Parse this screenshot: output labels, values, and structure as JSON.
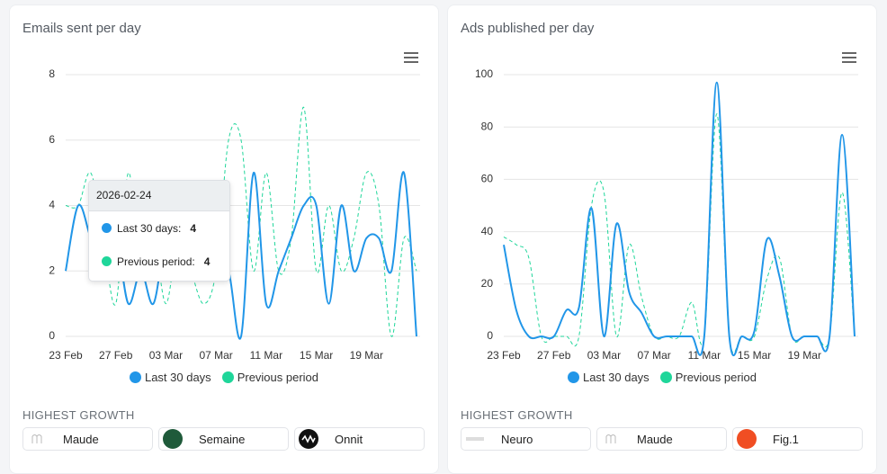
{
  "chart_data": [
    {
      "type": "line",
      "title": "Emails sent per day",
      "x": [
        "2026-02-23",
        "2026-02-24",
        "2026-02-25",
        "2026-02-26",
        "2026-02-27",
        "2026-02-28",
        "2026-03-01",
        "2026-03-02",
        "2026-03-03",
        "2026-03-04",
        "2026-03-05",
        "2026-03-06",
        "2026-03-07",
        "2026-03-08",
        "2026-03-09",
        "2026-03-10",
        "2026-03-11",
        "2026-03-12",
        "2026-03-13",
        "2026-03-14",
        "2026-03-15",
        "2026-03-16",
        "2026-03-17",
        "2026-03-18",
        "2026-03-19",
        "2026-03-20",
        "2026-03-21",
        "2026-03-22",
        "2026-03-23"
      ],
      "xticks": [
        {
          "value": "2026-02-23",
          "label": "23 Feb"
        },
        {
          "value": "2026-02-27",
          "label": "27 Feb"
        },
        {
          "value": "2026-03-03",
          "label": "03 Mar"
        },
        {
          "value": "2026-03-07",
          "label": "07 Mar"
        },
        {
          "value": "2026-03-11",
          "label": "11 Mar"
        },
        {
          "value": "2026-03-15",
          "label": "15 Mar"
        },
        {
          "value": "2026-03-19",
          "label": "19 Mar"
        }
      ],
      "ylim": [
        0,
        8
      ],
      "yticks": [
        0,
        2,
        4,
        6,
        8
      ],
      "grid": true,
      "series": [
        {
          "name": "Last 30 days",
          "color": "#2196e8",
          "style": "solid",
          "values": [
            2,
            4,
            3,
            2,
            3,
            1,
            2,
            1,
            3,
            3,
            3,
            3,
            2,
            2,
            0,
            5,
            1,
            2,
            3,
            4,
            4,
            1,
            4,
            2,
            3,
            3,
            2,
            5,
            0
          ]
        },
        {
          "name": "Previous period",
          "color": "#1fd69a",
          "style": "dashed",
          "values": [
            4,
            4,
            5,
            3,
            1,
            5,
            2,
            3,
            1,
            3,
            2,
            1,
            2,
            6,
            6,
            2,
            5,
            2,
            3,
            7,
            2,
            4,
            2,
            3,
            5,
            4,
            0,
            3,
            2
          ]
        }
      ],
      "tooltip": {
        "date": "2026-02-24",
        "labels": [
          "Last 30 days:",
          "Previous period:"
        ]
      }
    },
    {
      "type": "line",
      "title": "Ads published per day",
      "x": [
        "2026-02-23",
        "2026-02-24",
        "2026-02-25",
        "2026-02-26",
        "2026-02-27",
        "2026-02-28",
        "2026-03-01",
        "2026-03-02",
        "2026-03-03",
        "2026-03-04",
        "2026-03-05",
        "2026-03-06",
        "2026-03-07",
        "2026-03-08",
        "2026-03-09",
        "2026-03-10",
        "2026-03-11",
        "2026-03-12",
        "2026-03-13",
        "2026-03-14",
        "2026-03-15",
        "2026-03-16",
        "2026-03-17",
        "2026-03-18",
        "2026-03-19",
        "2026-03-20",
        "2026-03-21",
        "2026-03-22",
        "2026-03-23"
      ],
      "xticks": [
        {
          "value": "2026-02-23",
          "label": "23 Feb"
        },
        {
          "value": "2026-02-27",
          "label": "27 Feb"
        },
        {
          "value": "2026-03-03",
          "label": "03 Mar"
        },
        {
          "value": "2026-03-07",
          "label": "07 Mar"
        },
        {
          "value": "2026-03-11",
          "label": "11 Mar"
        },
        {
          "value": "2026-03-15",
          "label": "15 Mar"
        },
        {
          "value": "2026-03-19",
          "label": "19 Mar"
        }
      ],
      "ylim": [
        0,
        100
      ],
      "yticks": [
        0,
        20,
        40,
        60,
        80,
        100
      ],
      "grid": true,
      "series": [
        {
          "name": "Last 30 days",
          "color": "#2196e8",
          "style": "solid",
          "values": [
            35,
            10,
            0,
            0,
            0,
            10,
            11,
            49,
            0,
            43,
            17,
            9,
            0,
            0,
            0,
            0,
            0,
            97,
            0,
            0,
            2,
            37,
            23,
            0,
            0,
            0,
            0,
            77,
            0
          ]
        },
        {
          "name": "Previous period",
          "color": "#1fd69a",
          "style": "dashed",
          "values": [
            38,
            35,
            30,
            0,
            0,
            0,
            0,
            50,
            55,
            0,
            35,
            15,
            0,
            0,
            0,
            13,
            0,
            85,
            0,
            0,
            0,
            22,
            30,
            0,
            0,
            0,
            0,
            55,
            0
          ]
        }
      ]
    }
  ],
  "growth": [
    {
      "heading": "HIGHEST GROWTH",
      "items": [
        "Maude",
        "Semaine",
        "Onnit"
      ]
    },
    {
      "heading": "HIGHEST GROWTH",
      "items": [
        "Neuro",
        "Maude",
        "Fig.1"
      ]
    }
  ]
}
